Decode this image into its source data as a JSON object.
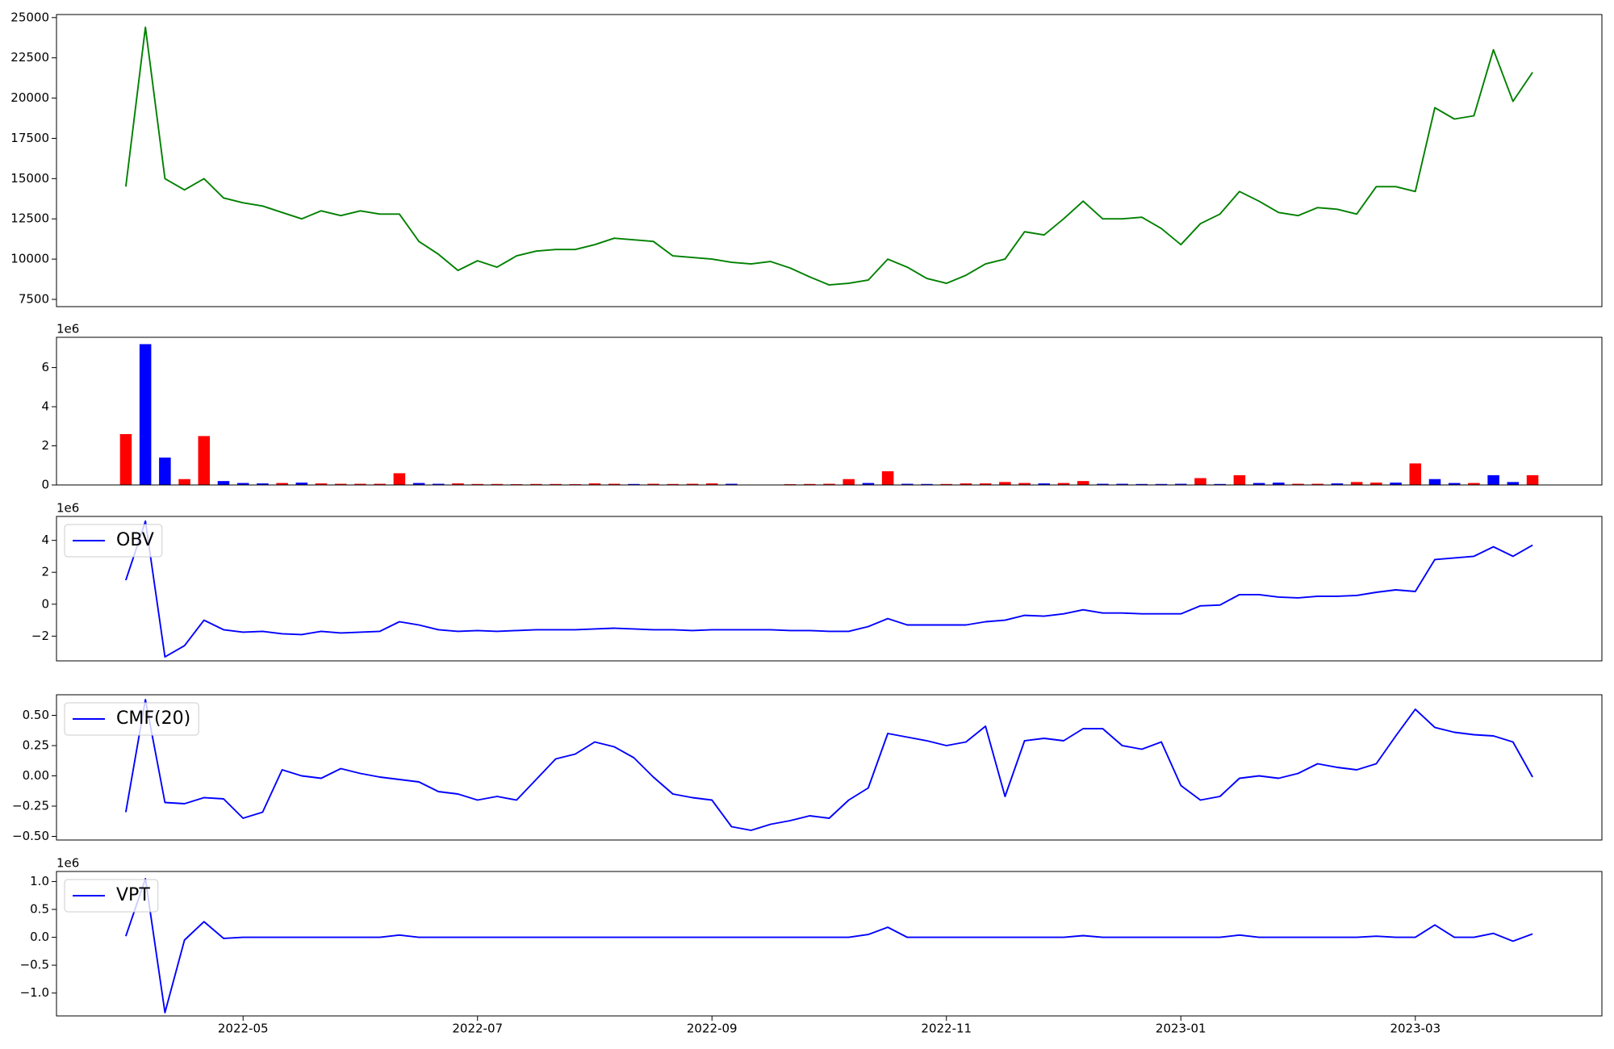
{
  "chart_data": [
    {
      "type": "line",
      "series": [
        {
          "color": "green",
          "values": [
            14500,
            24400,
            15000,
            14300,
            15000,
            13800,
            13500,
            13300,
            12900,
            12500,
            13000,
            12700,
            13000,
            12800,
            12800,
            11100,
            10300,
            9300,
            9900,
            9500,
            10200,
            10500,
            10600,
            10600,
            10900,
            11300,
            11200,
            11100,
            10200,
            10100,
            10000,
            9800,
            9700,
            9850,
            9450,
            8900,
            8400,
            8500,
            8700,
            10000,
            9500,
            8800,
            8500,
            9000,
            9700,
            10000,
            11700,
            11500,
            12500,
            13600,
            12500,
            12500,
            12600,
            11900,
            10900,
            12200,
            12800,
            14200,
            13600,
            12900,
            12700,
            13200,
            13100,
            12800,
            14500,
            14500,
            14200,
            19400,
            18700,
            18900,
            23000,
            19800,
            21600
          ]
        }
      ],
      "ylim": [
        7050,
        25190
      ],
      "yticks": [
        7500,
        10000,
        12500,
        15000,
        17500,
        20000,
        22500,
        25000
      ]
    },
    {
      "type": "bar",
      "offset_label": "1e6",
      "values": [
        2.6,
        7.2,
        1.4,
        0.3,
        2.5,
        0.2,
        0.1,
        0.08,
        0.1,
        0.12,
        0.08,
        0.06,
        0.06,
        0.06,
        0.6,
        0.1,
        0.06,
        0.08,
        0.05,
        0.05,
        0.04,
        0.05,
        0.05,
        0.04,
        0.08,
        0.06,
        0.05,
        0.06,
        0.05,
        0.06,
        0.08,
        0.06,
        0,
        0,
        0.04,
        0.05,
        0.06,
        0.3,
        0.1,
        0.7,
        0.06,
        0.05,
        0.05,
        0.08,
        0.08,
        0.15,
        0.1,
        0.08,
        0.1,
        0.2,
        0.06,
        0.06,
        0.05,
        0.05,
        0.06,
        0.35,
        0.05,
        0.5,
        0.1,
        0.12,
        0.06,
        0.06,
        0.08,
        0.15,
        0.12,
        0.12,
        1.1,
        0.3,
        0.1,
        0.1,
        0.5,
        0.15,
        0.5
      ],
      "colors": [
        "red",
        "blue",
        "blue",
        "red",
        "red",
        "blue",
        "blue",
        "blue",
        "red",
        "blue",
        "red",
        "red",
        "red",
        "red",
        "red",
        "blue",
        "blue",
        "red",
        "red",
        "red",
        "red",
        "red",
        "red",
        "red",
        "red",
        "red",
        "blue",
        "red",
        "red",
        "red",
        "red",
        "blue",
        "red",
        "red",
        "red",
        "red",
        "red",
        "red",
        "blue",
        "red",
        "blue",
        "blue",
        "red",
        "red",
        "red",
        "red",
        "red",
        "blue",
        "red",
        "red",
        "blue",
        "blue",
        "blue",
        "blue",
        "blue",
        "red",
        "blue",
        "red",
        "blue",
        "blue",
        "red",
        "red",
        "blue",
        "red",
        "red",
        "blue",
        "red",
        "blue",
        "blue",
        "red",
        "blue",
        "blue",
        "red"
      ],
      "ylim": [
        0,
        7.55
      ],
      "yticks": [
        0,
        2,
        4,
        6
      ]
    },
    {
      "type": "line",
      "offset_label": "1e6",
      "legend": "upper left",
      "series": [
        {
          "name": "OBV",
          "color": "blue",
          "values": [
            1.5,
            5.2,
            -3.3,
            -2.6,
            -1.0,
            -1.6,
            -1.75,
            -1.7,
            -1.85,
            -1.9,
            -1.7,
            -1.8,
            -1.75,
            -1.7,
            -1.1,
            -1.3,
            -1.6,
            -1.7,
            -1.65,
            -1.7,
            -1.65,
            -1.6,
            -1.6,
            -1.6,
            -1.55,
            -1.5,
            -1.55,
            -1.6,
            -1.6,
            -1.65,
            -1.6,
            -1.6,
            -1.6,
            -1.6,
            -1.65,
            -1.65,
            -1.7,
            -1.7,
            -1.4,
            -0.9,
            -1.3,
            -1.3,
            -1.3,
            -1.3,
            -1.1,
            -1.0,
            -0.7,
            -0.75,
            -0.6,
            -0.35,
            -0.55,
            -0.55,
            -0.6,
            -0.6,
            -0.6,
            -0.1,
            -0.05,
            0.6,
            0.6,
            0.45,
            0.4,
            0.5,
            0.5,
            0.55,
            0.75,
            0.9,
            0.8,
            2.8,
            2.9,
            3.0,
            3.6,
            3.0,
            3.7
          ]
        }
      ],
      "ylim": [
        -3.55,
        5.5
      ],
      "yticks": [
        {
          "value": -2,
          "label": "−2"
        },
        0,
        2,
        4
      ]
    },
    {
      "type": "line",
      "legend": "upper left",
      "series": [
        {
          "name": "CMF(20)",
          "color": "blue",
          "values": [
            -0.3,
            0.63,
            -0.22,
            -0.23,
            -0.18,
            -0.19,
            -0.35,
            -0.3,
            0.05,
            0.0,
            -0.02,
            0.06,
            0.02,
            -0.01,
            -0.03,
            -0.05,
            -0.13,
            -0.15,
            -0.2,
            -0.17,
            -0.2,
            -0.03,
            0.14,
            0.18,
            0.28,
            0.24,
            0.15,
            -0.01,
            -0.15,
            -0.18,
            -0.2,
            -0.42,
            -0.45,
            -0.4,
            -0.37,
            -0.33,
            -0.35,
            -0.2,
            -0.1,
            0.35,
            0.32,
            0.29,
            0.25,
            0.28,
            0.41,
            -0.17,
            0.29,
            0.31,
            0.29,
            0.39,
            0.39,
            0.25,
            0.22,
            0.28,
            -0.08,
            -0.2,
            -0.17,
            -0.02,
            0.0,
            -0.02,
            0.02,
            0.1,
            0.07,
            0.05,
            0.1,
            0.33,
            0.55,
            0.4,
            0.36,
            0.34,
            0.33,
            0.28,
            -0.01
          ]
        }
      ],
      "ylim": [
        -0.53,
        0.67
      ],
      "yticks": [
        {
          "value": -0.5,
          "label": "−0.50"
        },
        {
          "value": -0.25,
          "label": "−0.25"
        },
        {
          "value": 0,
          "label": "0.00"
        },
        {
          "value": 0.25,
          "label": "0.25"
        },
        {
          "value": 0.5,
          "label": "0.50"
        }
      ]
    },
    {
      "type": "line",
      "offset_label": "1e6",
      "legend": "upper left",
      "categories": [
        null,
        null,
        null,
        null,
        null,
        null,
        "2022-05",
        null,
        null,
        null,
        null,
        null,
        null,
        null,
        null,
        null,
        null,
        null,
        "2022-07",
        null,
        null,
        null,
        null,
        null,
        null,
        null,
        null,
        null,
        null,
        null,
        "2022-09",
        null,
        null,
        null,
        null,
        null,
        null,
        null,
        null,
        null,
        null,
        null,
        "2022-11",
        null,
        null,
        null,
        null,
        null,
        null,
        null,
        null,
        null,
        null,
        null,
        "2023-01",
        null,
        null,
        null,
        null,
        null,
        null,
        null,
        null,
        null,
        null,
        null,
        "2023-03",
        null,
        null,
        null,
        null,
        null,
        null
      ],
      "series": [
        {
          "name": "VPT",
          "color": "blue",
          "values": [
            0.02,
            1.05,
            -1.35,
            -0.05,
            0.28,
            -0.02,
            0.0,
            0.0,
            0.0,
            0.0,
            0.0,
            0.0,
            0.0,
            0.0,
            0.04,
            0.0,
            0.0,
            0.0,
            0.0,
            0.0,
            0.0,
            0.0,
            0.0,
            0.0,
            0.0,
            0.0,
            0.0,
            0.0,
            0.0,
            0.0,
            0.0,
            0.0,
            0.0,
            0.0,
            0.0,
            0.0,
            0.0,
            0.0,
            0.05,
            0.18,
            0.0,
            0.0,
            0.0,
            0.0,
            0.0,
            0.0,
            0.0,
            0.0,
            0.0,
            0.03,
            0.0,
            0.0,
            0.0,
            0.0,
            0.0,
            0.0,
            0.0,
            0.04,
            0.0,
            0.0,
            0.0,
            0.0,
            0.0,
            0.0,
            0.02,
            0.0,
            0.0,
            0.22,
            0.0,
            0.0,
            0.07,
            -0.07,
            0.06
          ]
        }
      ],
      "ylim": [
        -1.41,
        1.18
      ],
      "yticks": [
        {
          "value": -1,
          "label": "−1.0"
        },
        {
          "value": -0.5,
          "label": "−0.5"
        },
        {
          "value": 0,
          "label": "0.0"
        },
        {
          "value": 0.5,
          "label": "0.5"
        },
        {
          "value": 1,
          "label": "1.0"
        }
      ]
    }
  ]
}
